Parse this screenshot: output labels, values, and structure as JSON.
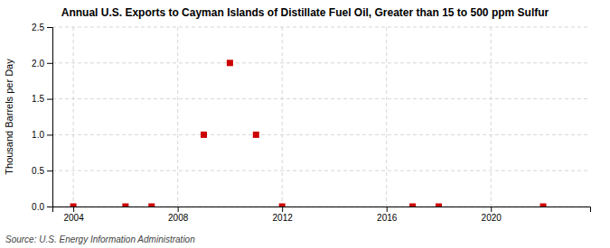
{
  "chart_data": {
    "type": "scatter",
    "title": "Annual U.S. Exports to Cayman Islands of Distillate Fuel Oil, Greater than 15 to 500 ppm Sulfur",
    "ylabel": "Thousand Barrels per Day",
    "source": "Source: U.S. Energy Information Administration",
    "x": [
      2004,
      2006,
      2007,
      2009,
      2010,
      2011,
      2012,
      2017,
      2018,
      2022
    ],
    "values": [
      0.0,
      0.0,
      0.0,
      1.0,
      2.0,
      1.0,
      0.0,
      0.0,
      0.0,
      0.0
    ],
    "color": "#cc0000",
    "marker": "square",
    "xlim": [
      2003.2,
      2023.8
    ],
    "ylim": [
      0.0,
      2.5
    ],
    "xticks": [
      2004,
      2008,
      2012,
      2016,
      2020
    ],
    "yticks": [
      {
        "value": 0.0,
        "label": "0.0"
      },
      {
        "value": 0.5,
        "label": "0.5"
      },
      {
        "value": 1.0,
        "label": "1.0"
      },
      {
        "value": 1.5,
        "label": "1.5"
      },
      {
        "value": 2.0,
        "label": "2.0"
      },
      {
        "value": 2.5,
        "label": "2.5"
      }
    ],
    "grid": true
  }
}
